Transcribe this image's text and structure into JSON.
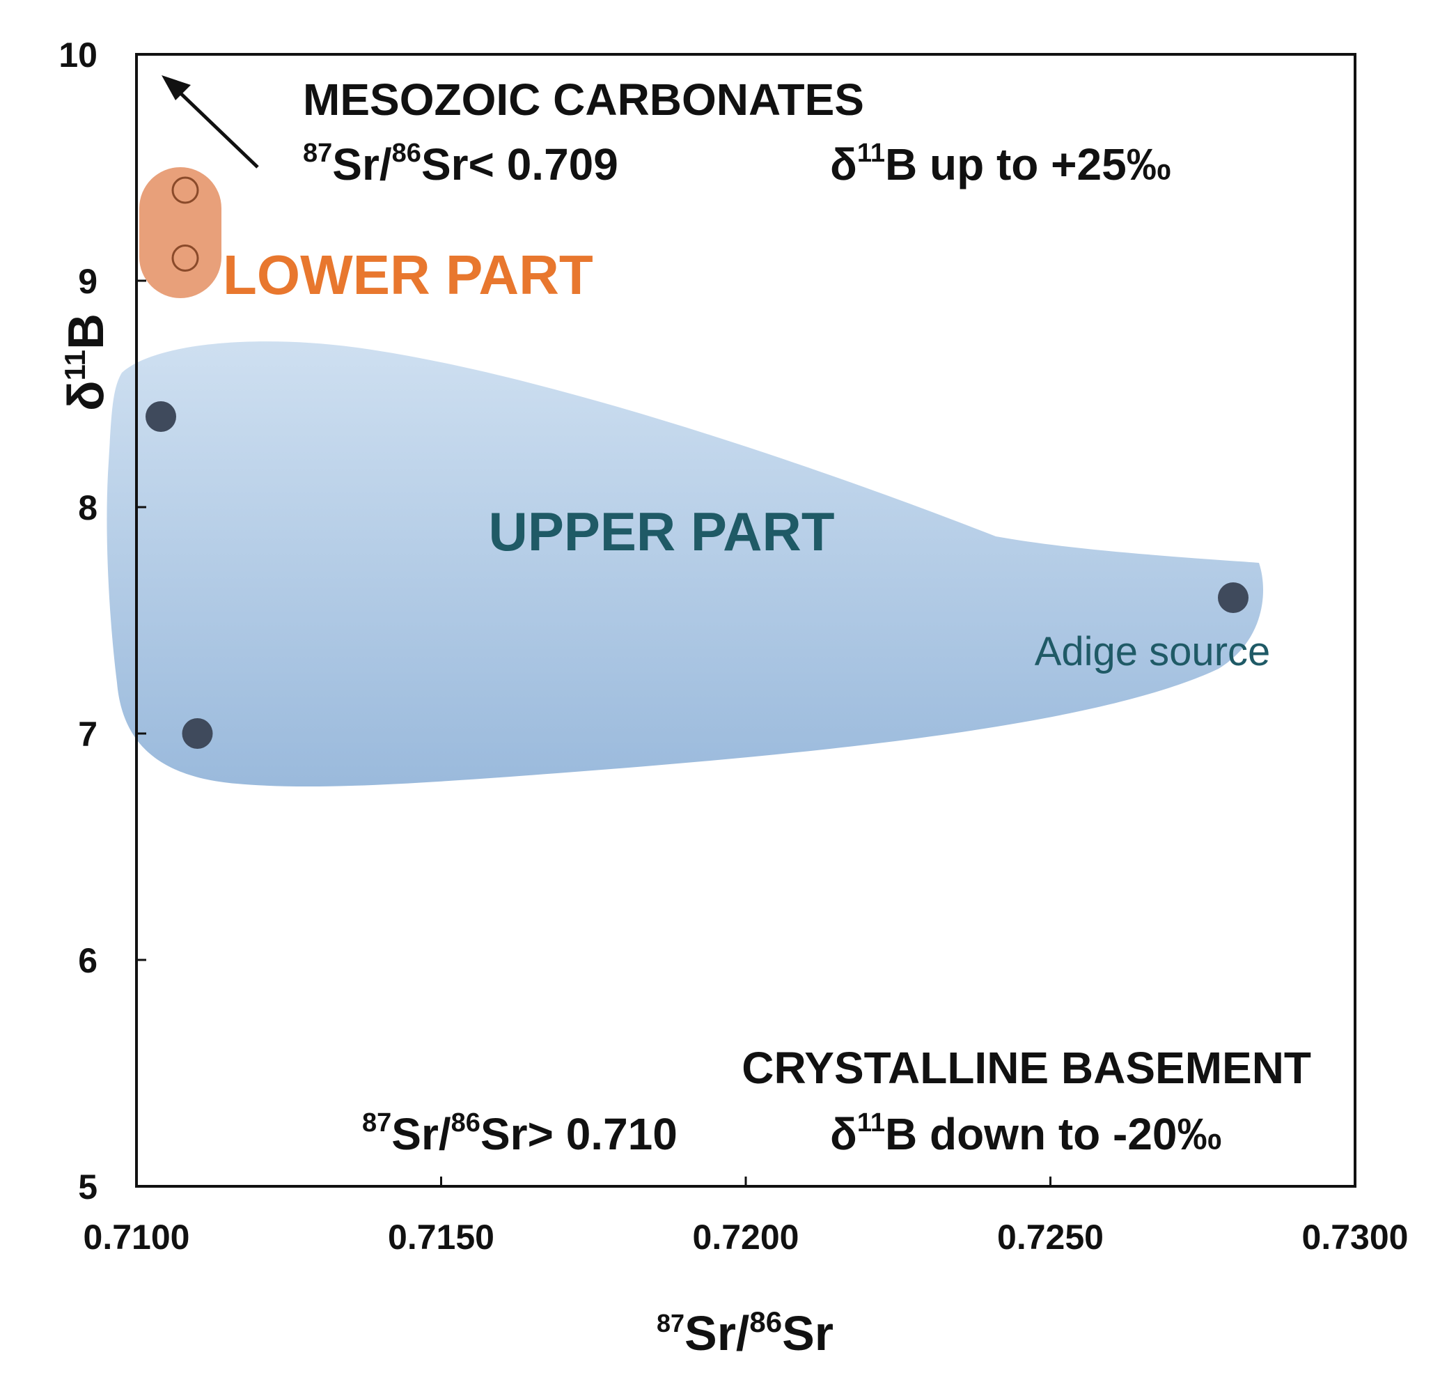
{
  "chart_data": {
    "type": "scatter",
    "title": "",
    "xlabel": {
      "sup1": "87",
      "a": "Sr/",
      "sup2": "86",
      "b": "Sr"
    },
    "ylabel": {
      "prefix": "δ",
      "sup": "11",
      "suffix": "B"
    },
    "xlim": [
      0.71,
      0.73
    ],
    "ylim": [
      5,
      10
    ],
    "x_ticks": [
      {
        "value": 0.71,
        "label": "0.7100"
      },
      {
        "value": 0.715,
        "label": "0.7150"
      },
      {
        "value": 0.72,
        "label": "0.7200"
      },
      {
        "value": 0.725,
        "label": "0.7250"
      },
      {
        "value": 0.73,
        "label": "0.7300"
      }
    ],
    "y_ticks": [
      {
        "value": 5,
        "label": "5"
      },
      {
        "value": 6,
        "label": "6"
      },
      {
        "value": 7,
        "label": "7"
      },
      {
        "value": 8,
        "label": "8"
      },
      {
        "value": 9,
        "label": "9"
      },
      {
        "value": 10,
        "label": "10"
      }
    ],
    "grid": false,
    "series": [
      {
        "name": "LOWER PART",
        "marker": "open-circle",
        "color": "#e8772e",
        "points": [
          {
            "x": 0.7108,
            "y": 9.4
          },
          {
            "x": 0.7108,
            "y": 9.1
          }
        ]
      },
      {
        "name": "UPPER PART",
        "marker": "filled-circle",
        "color": "#3f4a5c",
        "points": [
          {
            "x": 0.7104,
            "y": 8.4
          },
          {
            "x": 0.711,
            "y": 7.0
          },
          {
            "x": 0.728,
            "y": 7.6
          }
        ]
      }
    ],
    "region_colors": {
      "lower": "#e8a07a",
      "upper": "#9dbddf"
    },
    "annotations": {
      "lower_label": "LOWER PART",
      "upper_label": "UPPER PART",
      "adige_label": "Adige source",
      "mesozoic": {
        "title": "MESOZOIC CARBONATES",
        "sr_sup1": "87",
        "sr_mid": "Sr/",
        "sr_sup2": "86",
        "sr_rest": "Sr< 0.709",
        "b_prefix": "δ",
        "b_sup": "11",
        "b_rest": "B up to +25‰"
      },
      "crystalline": {
        "title": "CRYSTALLINE BASEMENT",
        "sr_sup1": "87",
        "sr_mid": "Sr/",
        "sr_sup2": "86",
        "sr_rest": "Sr> 0.710",
        "b_prefix": "δ",
        "b_sup": "11",
        "b_rest": "B down to -20‰"
      }
    },
    "colors": {
      "upper_label": "#1f5a66",
      "lower_label": "#e8772e",
      "adige_label": "#1f5a66"
    }
  }
}
